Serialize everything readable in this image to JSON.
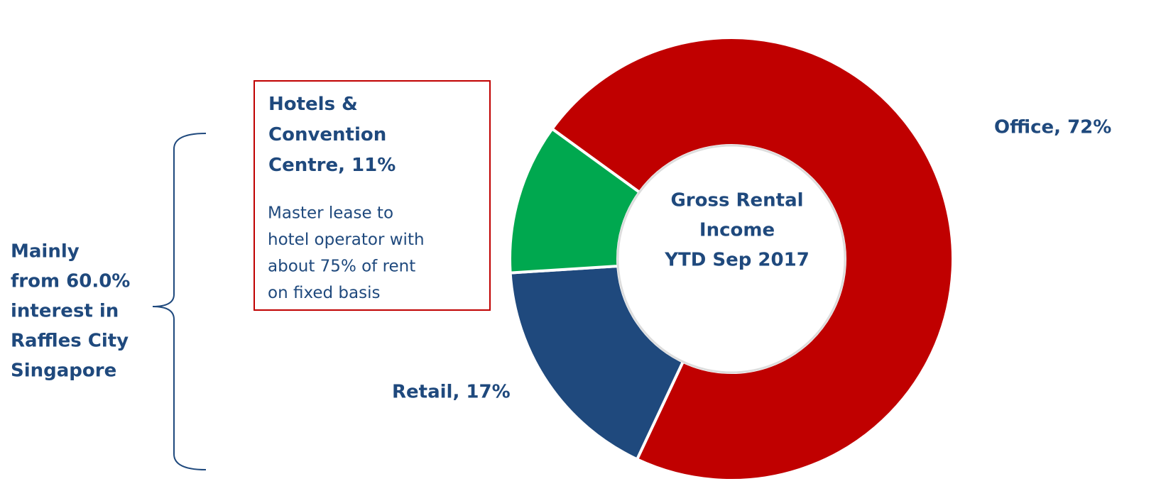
{
  "chart_data": {
    "type": "donut",
    "values": [
      72,
      17,
      11
    ],
    "value_labels": [
      "Office, 72%",
      "Retail, 17%",
      "Hotels & Convention Centre, 11%"
    ],
    "colors": [
      "#c00000",
      "#1f497d",
      "#00a84f"
    ],
    "center_label": [
      "Gross Rental",
      "Income",
      "YTD Sep 2017"
    ],
    "annotation": [
      "Master lease to",
      "hotel operator with",
      "about 75% of rent",
      "on fixed basis"
    ],
    "side_note": [
      "Mainly",
      "from 60.0%",
      "interest in",
      "Raffles City",
      "Singapore"
    ]
  }
}
